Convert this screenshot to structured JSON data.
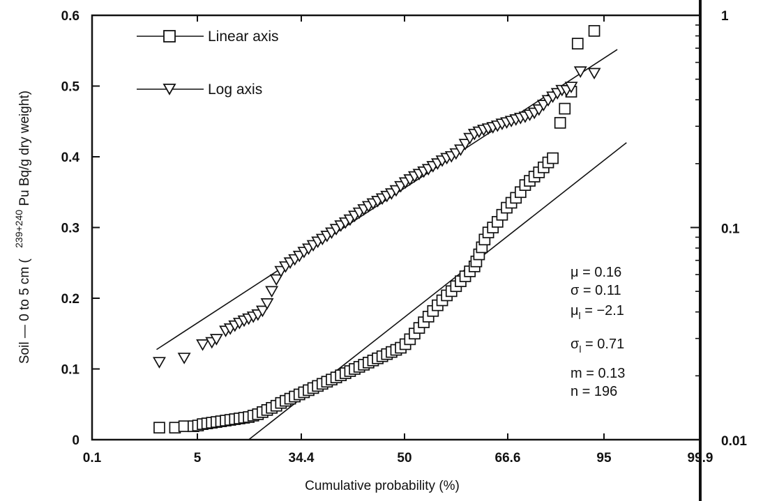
{
  "chart_data": {
    "type": "scatter",
    "xlabel": "Cumulative probability (%)",
    "ylabel": "Soil — 0 to 5 cm (  239+240Pu Bq/g dry weight)",
    "ylabel_parts": {
      "prefix": "Soil — 0 to 5 cm (",
      "superscript": "239+240",
      "suffix": "Pu Bq/g dry weight)"
    },
    "x_tick_labels": [
      "0.1",
      "5",
      "34.4",
      "50",
      "66.6",
      "95",
      "99.9"
    ],
    "y_left_ticks": [
      0,
      0.1,
      0.2,
      0.3,
      0.4,
      0.5,
      0.6
    ],
    "y_left_tick_labels": [
      "0",
      "0.1",
      "0.2",
      "0.3",
      "0.4",
      "0.5",
      "0.6"
    ],
    "y_right_tick_labels": [
      "1",
      "0.1",
      "0.01"
    ],
    "ylim_left": [
      0,
      0.6
    ],
    "ylim_right": [
      0.01,
      1
    ],
    "right_axis_scale": "log",
    "legend": {
      "placement": "top-left",
      "entries": [
        {
          "label": "Linear axis",
          "marker": "square"
        },
        {
          "label": "Log axis",
          "marker": "triangle-down"
        }
      ]
    },
    "stats": [
      {
        "sym": "μ",
        "sub": "",
        "val": " = 0.16"
      },
      {
        "sym": "σ",
        "sub": "",
        "val": " = 0.11"
      },
      {
        "sym": "μ",
        "sub": "l",
        "val": " = −2.1"
      },
      {
        "sym": "σ",
        "sub": "l",
        "val": " = 0.71"
      },
      {
        "sym": "m",
        "sub": "",
        "val": " = 0.13"
      },
      {
        "sym": "n",
        "sub": "",
        "val": " = 196"
      }
    ],
    "series": [
      {
        "name": "Linear axis",
        "marker": "square",
        "axis": "left",
        "fit_line": {
          "x": [
            -1.6,
            2.5
          ],
          "y": [
            0,
            0.42
          ]
        },
        "points": [
          [
            -2.57,
            0.017
          ],
          [
            -2.4,
            0.017
          ],
          [
            -2.3,
            0.019
          ],
          [
            -2.2,
            0.019
          ],
          [
            -2.15,
            0.02
          ],
          [
            -2.1,
            0.022
          ],
          [
            -2.05,
            0.023
          ],
          [
            -2.0,
            0.024
          ],
          [
            -1.95,
            0.025
          ],
          [
            -1.9,
            0.026
          ],
          [
            -1.85,
            0.027
          ],
          [
            -1.8,
            0.028
          ],
          [
            -1.75,
            0.029
          ],
          [
            -1.7,
            0.03
          ],
          [
            -1.65,
            0.031
          ],
          [
            -1.6,
            0.032
          ],
          [
            -1.55,
            0.034
          ],
          [
            -1.5,
            0.036
          ],
          [
            -1.45,
            0.039
          ],
          [
            -1.4,
            0.042
          ],
          [
            -1.35,
            0.045
          ],
          [
            -1.3,
            0.048
          ],
          [
            -1.25,
            0.052
          ],
          [
            -1.2,
            0.055
          ],
          [
            -1.15,
            0.058
          ],
          [
            -1.1,
            0.061
          ],
          [
            -1.05,
            0.064
          ],
          [
            -1.0,
            0.067
          ],
          [
            -0.95,
            0.07
          ],
          [
            -0.9,
            0.073
          ],
          [
            -0.85,
            0.076
          ],
          [
            -0.8,
            0.079
          ],
          [
            -0.75,
            0.082
          ],
          [
            -0.7,
            0.085
          ],
          [
            -0.65,
            0.088
          ],
          [
            -0.6,
            0.091
          ],
          [
            -0.55,
            0.094
          ],
          [
            -0.5,
            0.097
          ],
          [
            -0.45,
            0.1
          ],
          [
            -0.4,
            0.103
          ],
          [
            -0.35,
            0.106
          ],
          [
            -0.3,
            0.109
          ],
          [
            -0.25,
            0.112
          ],
          [
            -0.2,
            0.115
          ],
          [
            -0.15,
            0.118
          ],
          [
            -0.1,
            0.121
          ],
          [
            -0.05,
            0.124
          ],
          [
            0.0,
            0.127
          ],
          [
            0.05,
            0.13
          ],
          [
            0.1,
            0.135
          ],
          [
            0.15,
            0.142
          ],
          [
            0.2,
            0.15
          ],
          [
            0.25,
            0.158
          ],
          [
            0.3,
            0.166
          ],
          [
            0.35,
            0.174
          ],
          [
            0.4,
            0.182
          ],
          [
            0.45,
            0.19
          ],
          [
            0.5,
            0.197
          ],
          [
            0.55,
            0.204
          ],
          [
            0.6,
            0.21
          ],
          [
            0.65,
            0.217
          ],
          [
            0.7,
            0.224
          ],
          [
            0.75,
            0.231
          ],
          [
            0.8,
            0.238
          ],
          [
            0.85,
            0.245
          ],
          [
            0.87,
            0.252
          ],
          [
            0.9,
            0.262
          ],
          [
            0.93,
            0.272
          ],
          [
            0.96,
            0.283
          ],
          [
            1.0,
            0.293
          ],
          [
            1.05,
            0.3
          ],
          [
            1.1,
            0.308
          ],
          [
            1.15,
            0.318
          ],
          [
            1.2,
            0.328
          ],
          [
            1.25,
            0.335
          ],
          [
            1.3,
            0.342
          ],
          [
            1.35,
            0.35
          ],
          [
            1.4,
            0.36
          ],
          [
            1.45,
            0.366
          ],
          [
            1.5,
            0.372
          ],
          [
            1.55,
            0.378
          ],
          [
            1.6,
            0.385
          ],
          [
            1.65,
            0.392
          ],
          [
            1.7,
            0.398
          ],
          [
            1.78,
            0.448
          ],
          [
            1.83,
            0.468
          ],
          [
            1.9,
            0.492
          ],
          [
            1.97,
            0.56
          ],
          [
            2.15,
            0.578
          ]
        ]
      },
      {
        "name": "Log axis",
        "marker": "triangle-down",
        "axis": "right",
        "fit_line": {
          "x": [
            -2.6,
            2.4
          ],
          "y": [
            0.0266,
            0.69
          ]
        },
        "points": [
          [
            -2.57,
            0.0232
          ],
          [
            -2.3,
            0.0243
          ],
          [
            -2.1,
            0.0281
          ],
          [
            -2.0,
            0.0288
          ],
          [
            -1.95,
            0.0298
          ],
          [
            -1.85,
            0.0326
          ],
          [
            -1.8,
            0.0334
          ],
          [
            -1.75,
            0.0345
          ],
          [
            -1.7,
            0.0355
          ],
          [
            -1.65,
            0.0364
          ],
          [
            -1.6,
            0.0372
          ],
          [
            -1.55,
            0.038
          ],
          [
            -1.5,
            0.0389
          ],
          [
            -1.45,
            0.0405
          ],
          [
            -1.4,
            0.0439
          ],
          [
            -1.35,
            0.0501
          ],
          [
            -1.3,
            0.0569
          ],
          [
            -1.25,
            0.0623
          ],
          [
            -1.2,
            0.0655
          ],
          [
            -1.15,
            0.0684
          ],
          [
            -1.1,
            0.0708
          ],
          [
            -1.05,
            0.0735
          ],
          [
            -1.0,
            0.0767
          ],
          [
            -0.95,
            0.0795
          ],
          [
            -0.9,
            0.0825
          ],
          [
            -0.85,
            0.0857
          ],
          [
            -0.8,
            0.0883
          ],
          [
            -0.75,
            0.0913
          ],
          [
            -0.7,
            0.0946
          ],
          [
            -0.65,
            0.0983
          ],
          [
            -0.6,
            0.1022
          ],
          [
            -0.55,
            0.1055
          ],
          [
            -0.5,
            0.109
          ],
          [
            -0.45,
            0.1135
          ],
          [
            -0.4,
            0.1175
          ],
          [
            -0.35,
            0.1218
          ],
          [
            -0.3,
            0.126
          ],
          [
            -0.25,
            0.1298
          ],
          [
            -0.2,
            0.1333
          ],
          [
            -0.15,
            0.137
          ],
          [
            -0.1,
            0.1408
          ],
          [
            -0.05,
            0.1447
          ],
          [
            0.0,
            0.1497
          ],
          [
            0.05,
            0.1565
          ],
          [
            0.1,
            0.163
          ],
          [
            0.15,
            0.1685
          ],
          [
            0.2,
            0.1742
          ],
          [
            0.25,
            0.1787
          ],
          [
            0.3,
            0.1835
          ],
          [
            0.35,
            0.1884
          ],
          [
            0.4,
            0.1945
          ],
          [
            0.45,
            0.2003
          ],
          [
            0.5,
            0.2068
          ],
          [
            0.55,
            0.2124
          ],
          [
            0.6,
            0.2166
          ],
          [
            0.65,
            0.2234
          ],
          [
            0.7,
            0.2328
          ],
          [
            0.75,
            0.2475
          ],
          [
            0.8,
            0.264
          ],
          [
            0.85,
            0.276
          ],
          [
            0.9,
            0.2829
          ],
          [
            0.95,
            0.2887
          ],
          [
            1.0,
            0.2928
          ],
          [
            1.05,
            0.2968
          ],
          [
            1.1,
            0.3021
          ],
          [
            1.15,
            0.3082
          ],
          [
            1.2,
            0.3128
          ],
          [
            1.25,
            0.3179
          ],
          [
            1.3,
            0.3231
          ],
          [
            1.35,
            0.3284
          ],
          [
            1.4,
            0.3329
          ],
          [
            1.45,
            0.34
          ],
          [
            1.5,
            0.3473
          ],
          [
            1.55,
            0.36
          ],
          [
            1.6,
            0.378
          ],
          [
            1.65,
            0.398
          ],
          [
            1.7,
            0.4138
          ],
          [
            1.75,
            0.4295
          ],
          [
            1.8,
            0.4447
          ],
          [
            1.85,
            0.444
          ],
          [
            1.9,
            0.46
          ],
          [
            2.0,
            0.5435
          ],
          [
            2.15,
            0.5345
          ]
        ]
      }
    ]
  }
}
